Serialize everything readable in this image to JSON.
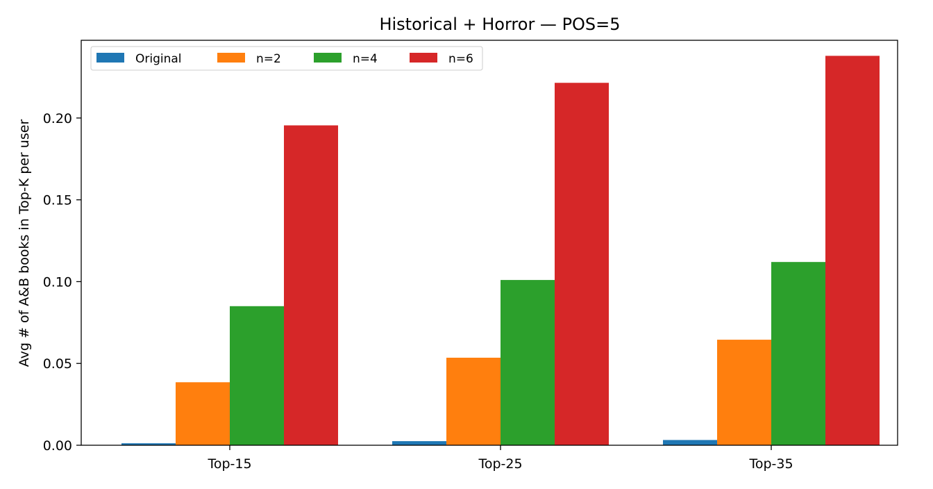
{
  "chart_data": {
    "type": "bar",
    "title": "Historical + Horror — POS=5",
    "xlabel": "",
    "ylabel": "Avg # of A&B books in Top-K per user",
    "categories": [
      "Top-15",
      "Top-25",
      "Top-35"
    ],
    "series": [
      {
        "name": "Original",
        "color": "#1f77b4",
        "values": [
          0.0012,
          0.0025,
          0.0032
        ]
      },
      {
        "name": "n=2",
        "color": "#ff7f0e",
        "values": [
          0.0385,
          0.0535,
          0.0645
        ]
      },
      {
        "name": "n=4",
        "color": "#2ca02c",
        "values": [
          0.085,
          0.101,
          0.112
        ]
      },
      {
        "name": "n=6",
        "color": "#d62728",
        "values": [
          0.1955,
          0.2215,
          0.238
        ]
      }
    ],
    "ylim": [
      0,
      0.2475
    ],
    "yticks": [
      "0.00",
      "0.05",
      "0.10",
      "0.15",
      "0.20"
    ],
    "grid": false,
    "legend_position": "top-left"
  }
}
